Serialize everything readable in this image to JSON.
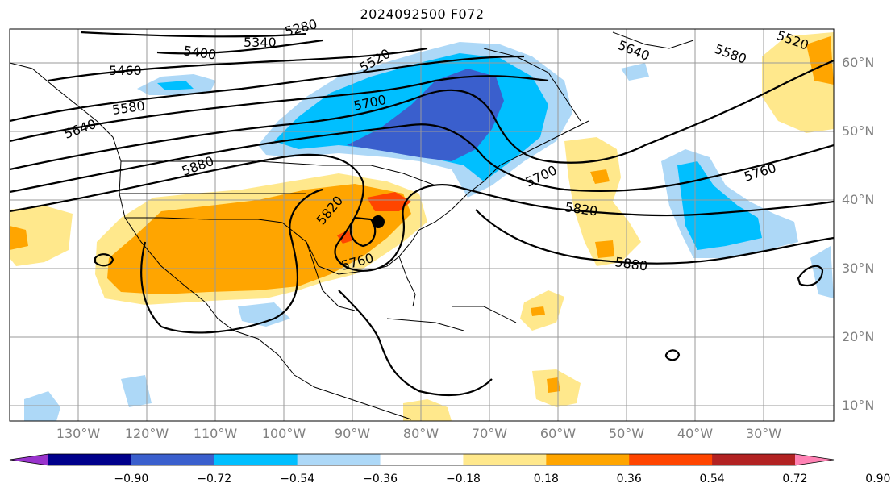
{
  "title": "2024092500 F072",
  "latitude_labels": [
    "60°N",
    "50°N",
    "40°N",
    "30°N",
    "20°N",
    "10°N"
  ],
  "longitude_labels": [
    "130°W",
    "120°W",
    "110°W",
    "100°W",
    "90°W",
    "80°W",
    "70°W",
    "60°W",
    "50°W",
    "40°W",
    "30°W"
  ],
  "contour_labels": [
    "5280",
    "5340",
    "5400",
    "5460",
    "5520",
    "5520",
    "5580",
    "5640",
    "5580",
    "5640",
    "5700",
    "5700",
    "5760",
    "5760",
    "5820",
    "5820",
    "5880",
    "5880"
  ],
  "colorbar": {
    "ticks": [
      "−0.90",
      "−0.72",
      "−0.54",
      "−0.36",
      "−0.18",
      "0.18",
      "0.36",
      "0.54",
      "0.72",
      "0.90"
    ],
    "colors": [
      "#9933cc",
      "#00008b",
      "#3a5fcd",
      "#00bfff",
      "#add8f7",
      "#ffffff",
      "#ffe88c",
      "#ffa500",
      "#ff4500",
      "#b22222",
      "#ff82b4"
    ]
  },
  "colors": {
    "shade_positive_light": "#ffe88c",
    "shade_positive_mid": "#ffa500",
    "shade_positive_strong": "#ff4500",
    "shade_negative_light": "#add8f7",
    "shade_negative_mid": "#00bfff",
    "shade_negative_strong": "#3a5fcd"
  }
}
